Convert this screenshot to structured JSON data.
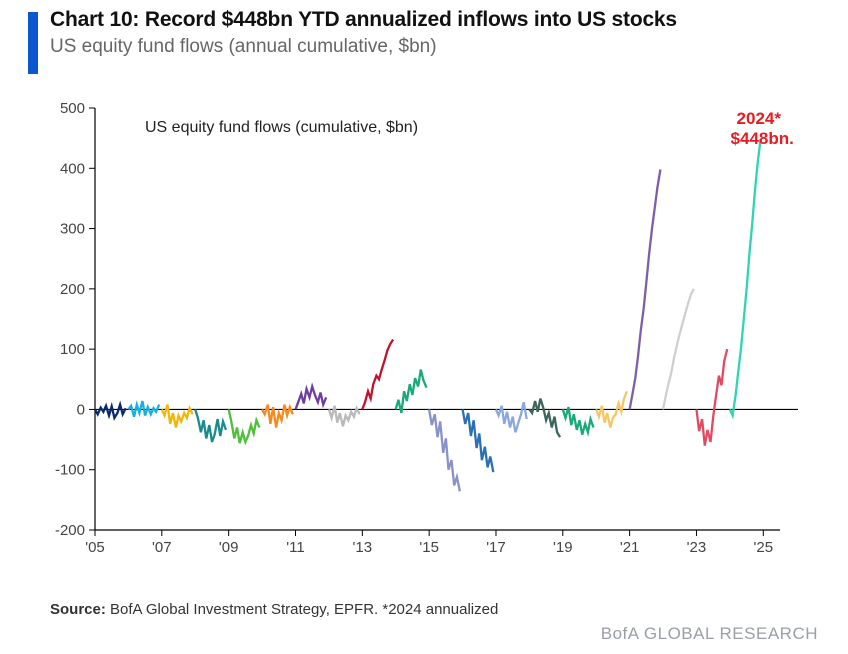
{
  "header": {
    "title": "Chart 10: Record $448bn YTD annualized inflows into US stocks",
    "subtitle": "US equity fund flows (annual cumulative, $bn)",
    "accent_color": "#0b57d0"
  },
  "chart": {
    "type": "line",
    "legend_text": "US equity fund flows (cumulative, $bn)",
    "legend_fontsize": 16,
    "annotation": {
      "line1": "2024*",
      "line2": "$448bn.",
      "color": "#e81b23"
    },
    "ylim": [
      -200,
      500
    ],
    "ytick_step": 100,
    "xlim": [
      2005,
      2025.5
    ],
    "xticks": [
      2005,
      2007,
      2009,
      2011,
      2013,
      2015,
      2017,
      2019,
      2021,
      2023,
      2025
    ],
    "xtick_labels": [
      "'05",
      "'07",
      "'09",
      "'11",
      "'13",
      "'15",
      "'17",
      "'19",
      "'21",
      "'23",
      "'25"
    ],
    "axis_color": "#000000",
    "background_color": "#ffffff",
    "line_width": 2.3,
    "series": [
      {
        "name": "y2005",
        "color": "#0b2a6b",
        "points": [
          [
            2005.0,
            0
          ],
          [
            2005.08,
            -8
          ],
          [
            2005.17,
            3
          ],
          [
            2005.25,
            -4
          ],
          [
            2005.33,
            6
          ],
          [
            2005.42,
            -10
          ],
          [
            2005.5,
            5
          ],
          [
            2005.58,
            -14
          ],
          [
            2005.67,
            -6
          ],
          [
            2005.75,
            8
          ],
          [
            2005.83,
            -8
          ],
          [
            2005.92,
            2
          ]
        ]
      },
      {
        "name": "y2006",
        "color": "#16b0e0",
        "points": [
          [
            2006.0,
            0
          ],
          [
            2006.08,
            6
          ],
          [
            2006.17,
            -12
          ],
          [
            2006.25,
            8
          ],
          [
            2006.33,
            -6
          ],
          [
            2006.42,
            14
          ],
          [
            2006.5,
            -10
          ],
          [
            2006.58,
            4
          ],
          [
            2006.67,
            -8
          ],
          [
            2006.75,
            2
          ],
          [
            2006.83,
            -4
          ],
          [
            2006.92,
            8
          ]
        ]
      },
      {
        "name": "y2007",
        "color": "#f2b705",
        "points": [
          [
            2007.0,
            0
          ],
          [
            2007.08,
            -10
          ],
          [
            2007.17,
            8
          ],
          [
            2007.25,
            -24
          ],
          [
            2007.33,
            -6
          ],
          [
            2007.42,
            -30
          ],
          [
            2007.5,
            -10
          ],
          [
            2007.58,
            -20
          ],
          [
            2007.67,
            -6
          ],
          [
            2007.75,
            -14
          ],
          [
            2007.83,
            2
          ],
          [
            2007.92,
            -8
          ]
        ]
      },
      {
        "name": "y2008",
        "color": "#198a8e",
        "points": [
          [
            2008.0,
            0
          ],
          [
            2008.08,
            -14
          ],
          [
            2008.17,
            -38
          ],
          [
            2008.25,
            -18
          ],
          [
            2008.33,
            -48
          ],
          [
            2008.42,
            -26
          ],
          [
            2008.5,
            -54
          ],
          [
            2008.58,
            -42
          ],
          [
            2008.67,
            -16
          ],
          [
            2008.75,
            -44
          ],
          [
            2008.83,
            -20
          ],
          [
            2008.92,
            -34
          ]
        ]
      },
      {
        "name": "y2009",
        "color": "#4dbf3a",
        "points": [
          [
            2009.0,
            0
          ],
          [
            2009.08,
            -20
          ],
          [
            2009.17,
            -48
          ],
          [
            2009.25,
            -30
          ],
          [
            2009.33,
            -56
          ],
          [
            2009.42,
            -38
          ],
          [
            2009.5,
            -54
          ],
          [
            2009.58,
            -44
          ],
          [
            2009.67,
            -26
          ],
          [
            2009.75,
            -40
          ],
          [
            2009.83,
            -18
          ],
          [
            2009.92,
            -30
          ]
        ]
      },
      {
        "name": "y2010",
        "color": "#f58a1f",
        "points": [
          [
            2010.0,
            0
          ],
          [
            2010.08,
            -8
          ],
          [
            2010.17,
            8
          ],
          [
            2010.25,
            -24
          ],
          [
            2010.33,
            4
          ],
          [
            2010.42,
            -30
          ],
          [
            2010.5,
            -6
          ],
          [
            2010.58,
            -18
          ],
          [
            2010.67,
            8
          ],
          [
            2010.75,
            -10
          ],
          [
            2010.83,
            4
          ],
          [
            2010.92,
            -8
          ]
        ]
      },
      {
        "name": "y2011",
        "color": "#6d3fa0",
        "points": [
          [
            2011.0,
            0
          ],
          [
            2011.08,
            12
          ],
          [
            2011.17,
            26
          ],
          [
            2011.25,
            10
          ],
          [
            2011.33,
            34
          ],
          [
            2011.42,
            20
          ],
          [
            2011.5,
            38
          ],
          [
            2011.58,
            24
          ],
          [
            2011.67,
            12
          ],
          [
            2011.75,
            28
          ],
          [
            2011.83,
            8
          ],
          [
            2011.92,
            20
          ]
        ]
      },
      {
        "name": "y2012",
        "color": "#b9b9b9",
        "points": [
          [
            2012.0,
            0
          ],
          [
            2012.08,
            -14
          ],
          [
            2012.17,
            6
          ],
          [
            2012.25,
            -22
          ],
          [
            2012.33,
            -6
          ],
          [
            2012.42,
            -28
          ],
          [
            2012.5,
            -10
          ],
          [
            2012.58,
            -18
          ],
          [
            2012.67,
            -4
          ],
          [
            2012.75,
            -12
          ],
          [
            2012.83,
            2
          ],
          [
            2012.92,
            -8
          ]
        ]
      },
      {
        "name": "y2013",
        "color": "#c0142c",
        "points": [
          [
            2013.0,
            0
          ],
          [
            2013.08,
            12
          ],
          [
            2013.17,
            30
          ],
          [
            2013.25,
            18
          ],
          [
            2013.33,
            42
          ],
          [
            2013.42,
            56
          ],
          [
            2013.5,
            50
          ],
          [
            2013.58,
            66
          ],
          [
            2013.67,
            82
          ],
          [
            2013.75,
            98
          ],
          [
            2013.83,
            108
          ],
          [
            2013.92,
            116
          ]
        ]
      },
      {
        "name": "y2014",
        "color": "#1aa97a",
        "points": [
          [
            2014.0,
            0
          ],
          [
            2014.08,
            16
          ],
          [
            2014.17,
            -6
          ],
          [
            2014.25,
            30
          ],
          [
            2014.33,
            14
          ],
          [
            2014.42,
            42
          ],
          [
            2014.5,
            24
          ],
          [
            2014.58,
            52
          ],
          [
            2014.67,
            38
          ],
          [
            2014.75,
            66
          ],
          [
            2014.83,
            48
          ],
          [
            2014.92,
            36
          ]
        ]
      },
      {
        "name": "y2015",
        "color": "#8793c7",
        "points": [
          [
            2015.0,
            0
          ],
          [
            2015.08,
            -26
          ],
          [
            2015.17,
            -8
          ],
          [
            2015.25,
            -46
          ],
          [
            2015.33,
            -20
          ],
          [
            2015.42,
            -72
          ],
          [
            2015.5,
            -48
          ],
          [
            2015.58,
            -100
          ],
          [
            2015.67,
            -84
          ],
          [
            2015.75,
            -126
          ],
          [
            2015.83,
            -112
          ],
          [
            2015.92,
            -136
          ]
        ]
      },
      {
        "name": "y2016",
        "color": "#2b6fb5",
        "points": [
          [
            2016.0,
            0
          ],
          [
            2016.08,
            -24
          ],
          [
            2016.17,
            -6
          ],
          [
            2016.25,
            -44
          ],
          [
            2016.33,
            -18
          ],
          [
            2016.42,
            -64
          ],
          [
            2016.5,
            -40
          ],
          [
            2016.58,
            -84
          ],
          [
            2016.67,
            -62
          ],
          [
            2016.75,
            -96
          ],
          [
            2016.83,
            -78
          ],
          [
            2016.92,
            -104
          ]
        ]
      },
      {
        "name": "y2017",
        "color": "#8aa8e0",
        "points": [
          [
            2017.0,
            0
          ],
          [
            2017.08,
            -10
          ],
          [
            2017.17,
            6
          ],
          [
            2017.25,
            -24
          ],
          [
            2017.33,
            -4
          ],
          [
            2017.42,
            -30
          ],
          [
            2017.5,
            -12
          ],
          [
            2017.58,
            -38
          ],
          [
            2017.67,
            -22
          ],
          [
            2017.75,
            -8
          ],
          [
            2017.83,
            12
          ],
          [
            2017.92,
            -16
          ]
        ]
      },
      {
        "name": "y2018",
        "color": "#3a665e",
        "points": [
          [
            2018.0,
            0
          ],
          [
            2018.08,
            -6
          ],
          [
            2018.17,
            14
          ],
          [
            2018.25,
            -4
          ],
          [
            2018.33,
            18
          ],
          [
            2018.42,
            2
          ],
          [
            2018.5,
            -18
          ],
          [
            2018.58,
            -6
          ],
          [
            2018.67,
            -30
          ],
          [
            2018.75,
            -12
          ],
          [
            2018.83,
            -38
          ],
          [
            2018.92,
            -46
          ]
        ]
      },
      {
        "name": "y2019",
        "color": "#1aa97a",
        "points": [
          [
            2019.0,
            0
          ],
          [
            2019.08,
            -14
          ],
          [
            2019.17,
            4
          ],
          [
            2019.25,
            -26
          ],
          [
            2019.33,
            -8
          ],
          [
            2019.42,
            -34
          ],
          [
            2019.5,
            -18
          ],
          [
            2019.58,
            -42
          ],
          [
            2019.67,
            -24
          ],
          [
            2019.75,
            -38
          ],
          [
            2019.83,
            -16
          ],
          [
            2019.92,
            -30
          ]
        ]
      },
      {
        "name": "y2020",
        "color": "#f6c662",
        "points": [
          [
            2020.0,
            0
          ],
          [
            2020.08,
            -12
          ],
          [
            2020.17,
            6
          ],
          [
            2020.25,
            -22
          ],
          [
            2020.33,
            -6
          ],
          [
            2020.42,
            -30
          ],
          [
            2020.5,
            -14
          ],
          [
            2020.58,
            -8
          ],
          [
            2020.67,
            10
          ],
          [
            2020.75,
            -4
          ],
          [
            2020.83,
            18
          ],
          [
            2020.92,
            30
          ]
        ]
      },
      {
        "name": "y2021",
        "color": "#7d5fa8",
        "points": [
          [
            2021.0,
            0
          ],
          [
            2021.08,
            24
          ],
          [
            2021.17,
            52
          ],
          [
            2021.25,
            88
          ],
          [
            2021.33,
            130
          ],
          [
            2021.42,
            168
          ],
          [
            2021.5,
            210
          ],
          [
            2021.58,
            256
          ],
          [
            2021.67,
            300
          ],
          [
            2021.75,
            334
          ],
          [
            2021.83,
            368
          ],
          [
            2021.92,
            398
          ]
        ]
      },
      {
        "name": "y2022",
        "color": "#cfcfcf",
        "points": [
          [
            2022.0,
            0
          ],
          [
            2022.08,
            22
          ],
          [
            2022.17,
            44
          ],
          [
            2022.25,
            62
          ],
          [
            2022.33,
            86
          ],
          [
            2022.42,
            108
          ],
          [
            2022.5,
            126
          ],
          [
            2022.58,
            142
          ],
          [
            2022.67,
            160
          ],
          [
            2022.75,
            176
          ],
          [
            2022.83,
            190
          ],
          [
            2022.92,
            200
          ]
        ]
      },
      {
        "name": "y2023",
        "color": "#e24a62",
        "points": [
          [
            2023.0,
            0
          ],
          [
            2023.08,
            -36
          ],
          [
            2023.17,
            -16
          ],
          [
            2023.25,
            -60
          ],
          [
            2023.33,
            -34
          ],
          [
            2023.42,
            -54
          ],
          [
            2023.5,
            -12
          ],
          [
            2023.58,
            20
          ],
          [
            2023.67,
            56
          ],
          [
            2023.75,
            40
          ],
          [
            2023.83,
            80
          ],
          [
            2023.92,
            100
          ]
        ]
      },
      {
        "name": "y2024",
        "color": "#2fd4b4",
        "points": [
          [
            2024.0,
            0
          ],
          [
            2024.08,
            -10
          ],
          [
            2024.17,
            24
          ],
          [
            2024.25,
            62
          ],
          [
            2024.33,
            100
          ],
          [
            2024.42,
            152
          ],
          [
            2024.5,
            200
          ],
          [
            2024.58,
            256
          ],
          [
            2024.67,
            310
          ],
          [
            2024.75,
            362
          ],
          [
            2024.83,
            408
          ],
          [
            2024.92,
            448
          ]
        ]
      }
    ]
  },
  "footer": {
    "source_label": "Source:",
    "source_text": " BofA Global Investment Strategy, EPFR. *2024 annualized",
    "brand": "BofA GLOBAL RESEARCH",
    "brand_color": "#9aa0a6"
  }
}
